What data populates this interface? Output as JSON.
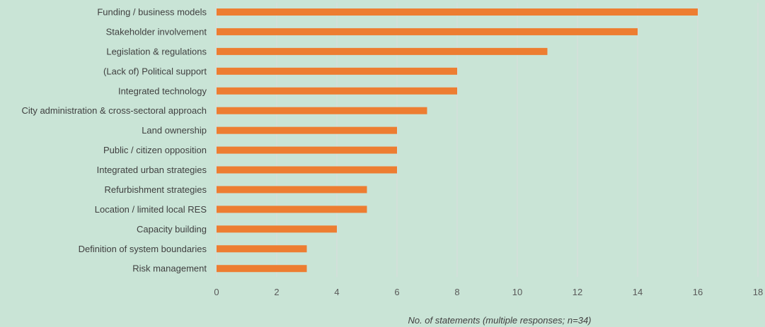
{
  "chart_data": {
    "type": "bar",
    "orientation": "horizontal",
    "categories": [
      "Funding / business models",
      "Stakeholder involvement",
      "Legislation & regulations",
      "(Lack of) Political support",
      "Integrated technology",
      "City administration & cross-sectoral approach",
      "Land ownership",
      "Public / citizen opposition",
      "Integrated urban strategies",
      "Refurbishment strategies",
      "Location / limited local RES",
      "Capacity building",
      "Definition of system boundaries",
      "Risk management"
    ],
    "values": [
      16,
      14,
      11,
      8,
      8,
      7,
      6,
      6,
      6,
      5,
      5,
      4,
      3,
      3
    ],
    "xlim": [
      0,
      18
    ],
    "xticks": [
      0,
      2,
      4,
      6,
      8,
      10,
      12,
      14,
      16,
      18
    ],
    "xlabel": "No. of statements (multiple responses; n=34)",
    "ylabel": "",
    "title": "",
    "grid": "vertical",
    "legend": "none",
    "bar_color": "#ed7d31",
    "background_color": "#c9e4d6"
  }
}
